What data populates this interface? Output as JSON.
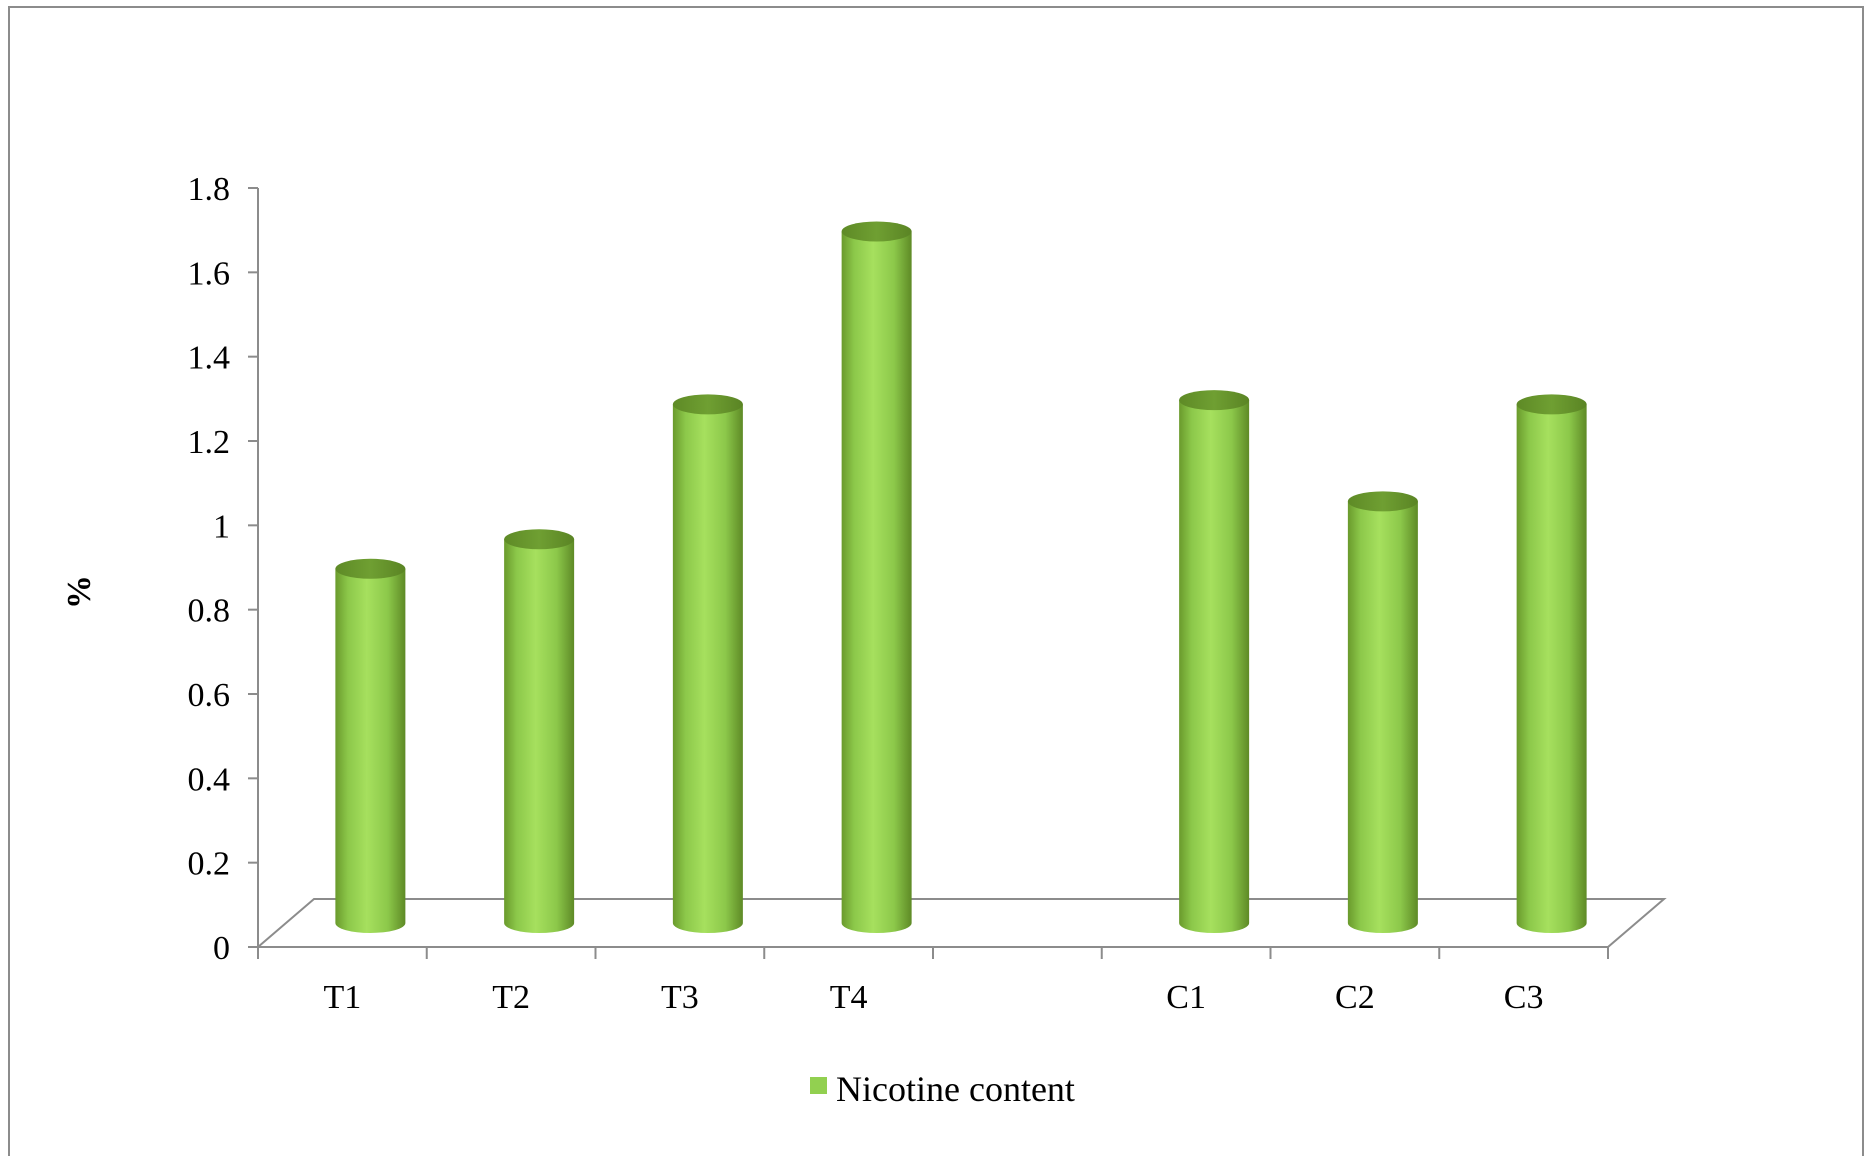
{
  "chart_data": {
    "type": "bar",
    "style": "3d-cylinder",
    "categories": [
      "T1",
      "T2",
      "T3",
      "T4",
      "",
      "C1",
      "C2",
      "C3"
    ],
    "series": [
      {
        "name": "Nicotine content",
        "values": [
          0.84,
          0.91,
          1.23,
          1.64,
          null,
          1.24,
          1.0,
          1.23
        ],
        "color": "#92d050"
      }
    ],
    "ylabel": "%",
    "ylim": [
      0,
      1.8
    ],
    "yticks": [
      "0",
      "0.2",
      "0.4",
      "0.6",
      "0.8",
      "1",
      "1.2",
      "1.4",
      "1.6",
      "1.8"
    ],
    "grid": false,
    "legend": "bottom"
  }
}
